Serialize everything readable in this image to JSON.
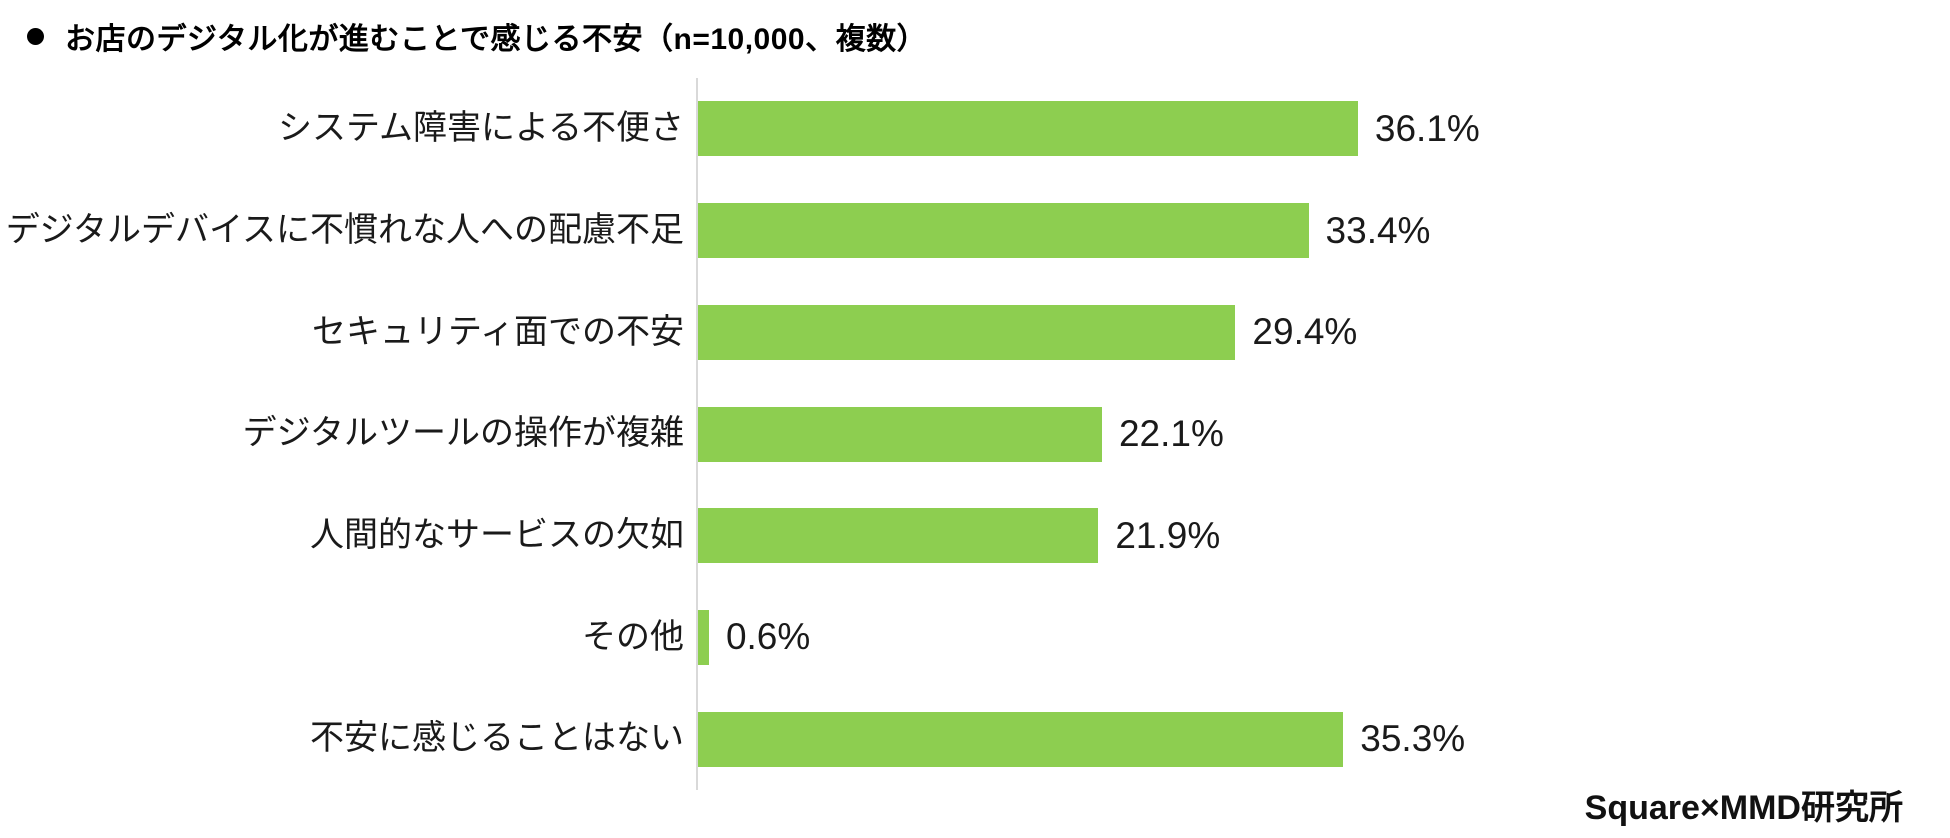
{
  "title": {
    "text": "お店のデジタル化が進むことで感じる不安（n=10,000、複数）"
  },
  "chart_data": {
    "type": "bar",
    "orientation": "horizontal",
    "title": "お店のデジタル化が進むことで感じる不安（n=10,000、複数）",
    "categories": [
      "システム障害による不便さ",
      "デジタルデバイスに不慣れな人への配慮不足",
      "セキュリティ面での不安",
      "デジタルツールの操作が複雑",
      "人間的なサービスの欠如",
      "その他",
      "不安に感じることはない"
    ],
    "values": [
      36.1,
      33.4,
      29.4,
      22.1,
      21.9,
      0.6,
      35.3
    ],
    "value_labels": [
      "36.1%",
      "33.4%",
      "29.4%",
      "22.1%",
      "21.9%",
      "0.6%",
      "35.3%"
    ],
    "bar_color": "#8DCE50",
    "axis_color": "#D9D9D9",
    "xlim": [
      0,
      40
    ],
    "grid": false,
    "legend": "none",
    "value_label_position": "right-of-bar"
  },
  "footer": {
    "source": "Square×MMD研究所"
  }
}
